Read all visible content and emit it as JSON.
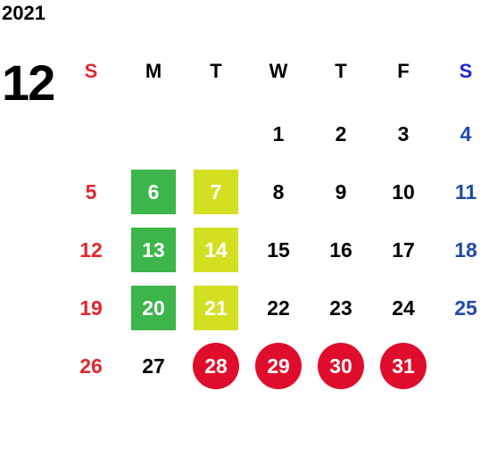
{
  "calendar": {
    "year": "2021",
    "month": "12",
    "weekdays": [
      "S",
      "M",
      "T",
      "W",
      "T",
      "F",
      "S"
    ],
    "weeks": [
      [
        "",
        "",
        "",
        "1",
        "2",
        "3",
        "4"
      ],
      [
        "5",
        "6",
        "7",
        "8",
        "9",
        "10",
        "11"
      ],
      [
        "12",
        "13",
        "14",
        "15",
        "16",
        "17",
        "18"
      ],
      [
        "19",
        "20",
        "21",
        "22",
        "23",
        "24",
        "25"
      ],
      [
        "26",
        "27",
        "28",
        "29",
        "30",
        "31",
        ""
      ]
    ],
    "highlight_colors": {
      "green": "#3cb54a",
      "lime": "#d3df21",
      "red": "#df0c2c",
      "sunday_text": "#e0272f",
      "saturday_text": "#1f4aa8"
    }
  }
}
